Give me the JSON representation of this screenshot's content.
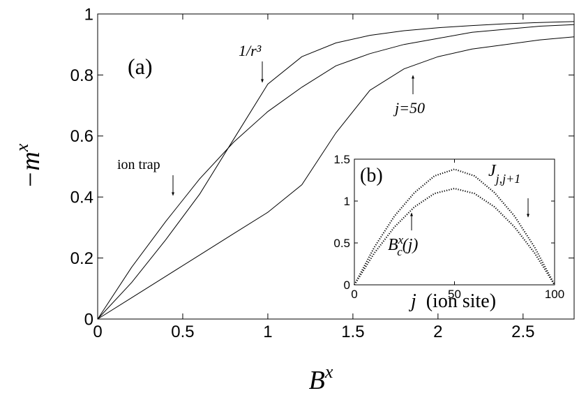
{
  "chart_data": [
    {
      "type": "line",
      "annotation": "(a)",
      "xlabel": "B",
      "xlabel_sup": "x",
      "ylabel": "−m",
      "ylabel_sup": "x",
      "x": [
        0,
        0.2,
        0.4,
        0.6,
        0.8,
        1.0,
        1.2,
        1.4,
        1.6,
        1.8,
        2.0,
        2.2,
        2.4,
        2.6,
        2.8
      ],
      "xlim": [
        0,
        2.8
      ],
      "xticks": [
        0,
        0.5,
        1,
        1.5,
        2,
        2.5
      ],
      "ylim": [
        0,
        1
      ],
      "yticks": [
        0,
        0.2,
        0.4,
        0.6,
        0.8,
        1
      ],
      "series": [
        {
          "name": "ion trap",
          "color": "#000000",
          "values": [
            0,
            0.17,
            0.32,
            0.46,
            0.58,
            0.68,
            0.76,
            0.83,
            0.87,
            0.9,
            0.92,
            0.94,
            0.95,
            0.96,
            0.965
          ]
        },
        {
          "name": "1/r³",
          "color": "#000000",
          "values": [
            0,
            0.12,
            0.26,
            0.41,
            0.59,
            0.77,
            0.86,
            0.905,
            0.93,
            0.945,
            0.955,
            0.962,
            0.968,
            0.972,
            0.975
          ]
        },
        {
          "name": "j=50",
          "color": "#000000",
          "values": [
            0,
            0.07,
            0.14,
            0.21,
            0.28,
            0.35,
            0.44,
            0.61,
            0.75,
            0.82,
            0.86,
            0.885,
            0.9,
            0.915,
            0.925
          ]
        }
      ]
    },
    {
      "type": "dotted-line",
      "annotation": "(b)",
      "xlabel": "j",
      "xlabel_rest": "(ion site)",
      "x": [
        0,
        10,
        20,
        30,
        40,
        50,
        60,
        70,
        80,
        90,
        100
      ],
      "xlim": [
        0,
        100
      ],
      "xticks": [
        0,
        50,
        100
      ],
      "ylim": [
        0,
        1.5
      ],
      "yticks": [
        0,
        0.5,
        1,
        1.5
      ],
      "series": [
        {
          "name": "J",
          "name_sub": "j,j+1",
          "color": "#000000",
          "values": [
            0,
            0.45,
            0.82,
            1.1,
            1.3,
            1.38,
            1.3,
            1.1,
            0.82,
            0.45,
            0
          ]
        },
        {
          "name": "B",
          "name_sup": "x",
          "name_sub": "c",
          "name_suffix": "(j)",
          "color": "#000000",
          "values": [
            0,
            0.38,
            0.69,
            0.93,
            1.09,
            1.15,
            1.09,
            0.93,
            0.69,
            0.38,
            0
          ]
        }
      ]
    }
  ]
}
